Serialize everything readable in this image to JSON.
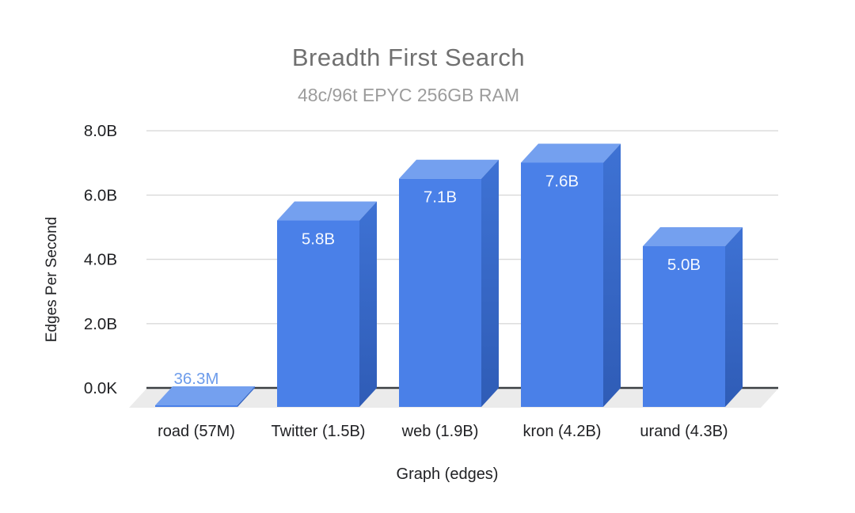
{
  "title": "Breadth First Search",
  "subtitle": "48c/96t EPYC 256GB RAM",
  "chart_data": {
    "type": "bar",
    "style": "3d-column",
    "title": "Breadth First Search",
    "subtitle": "48c/96t EPYC 256GB RAM",
    "xlabel": "Graph (edges)",
    "ylabel": "Edges Per Second",
    "categories": [
      "road (57M)",
      "Twitter (1.5B)",
      "web (1.9B)",
      "kron (4.2B)",
      "urand (4.3B)"
    ],
    "values": [
      36300000,
      5800000000,
      7100000000,
      7600000000,
      5000000000
    ],
    "value_labels": [
      "36.3M",
      "5.8B",
      "7.1B",
      "7.6B",
      "5.0B"
    ],
    "value_label_inside": [
      false,
      true,
      true,
      true,
      true
    ],
    "ylim": [
      0,
      8000000000
    ],
    "yticks": [
      {
        "label": "0.0K",
        "value": 0
      },
      {
        "label": "2.0B",
        "value": 2000000000
      },
      {
        "label": "4.0B",
        "value": 4000000000
      },
      {
        "label": "6.0B",
        "value": 6000000000
      },
      {
        "label": "8.0B",
        "value": 8000000000
      }
    ],
    "grid": true,
    "legend": "none",
    "colors": {
      "bar_front": "#4a80e8",
      "bar_top": "#74a0ef",
      "bar_side_top": "#3e72d4",
      "bar_side_bottom": "#2f5cb6",
      "value_label_inside": "#f4f8ff",
      "value_label_outside": "#6d9ceb",
      "floor": "#ebebeb",
      "gridline": "#d9d9d9",
      "axis_line": "#3c4043",
      "title": "#707070",
      "subtitle": "#9c9c9c",
      "tick_label": "#202124"
    }
  }
}
